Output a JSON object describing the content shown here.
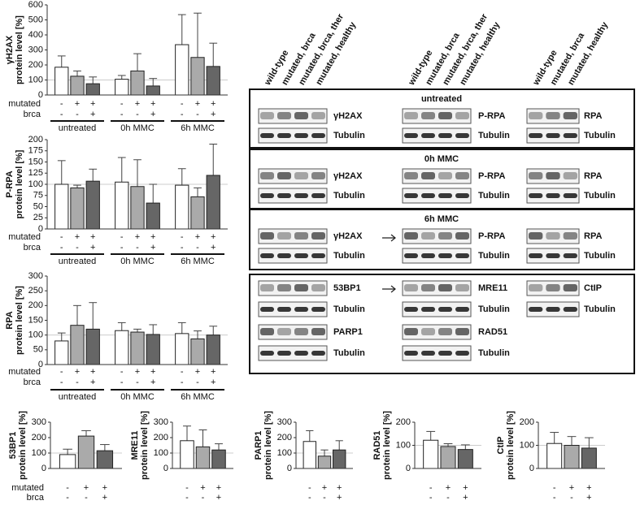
{
  "chart_data": [
    {
      "type": "bar",
      "title": "γH2AX",
      "ylabel": "protein level [%]",
      "ylim": [
        0,
        600
      ],
      "yticks": [
        0,
        100,
        200,
        300,
        400,
        500,
        600
      ],
      "hline": 100,
      "categories": [
        "untreated",
        "0h MMC",
        "6h MMC"
      ],
      "series": [
        {
          "color": "#ffffff",
          "values": [
            185,
            105,
            335
          ],
          "errors": [
            75,
            25,
            200
          ]
        },
        {
          "color": "#aaaaaa",
          "values": [
            125,
            160,
            250
          ],
          "errors": [
            35,
            115,
            295
          ]
        },
        {
          "color": "#666666",
          "values": [
            75,
            60,
            190
          ],
          "errors": [
            45,
            50,
            155
          ]
        }
      ],
      "rows": [
        {
          "label": "mutated",
          "signs": [
            "-",
            "+",
            "+",
            "-",
            "+",
            "+",
            "-",
            "+",
            "+"
          ]
        },
        {
          "label": "brca",
          "signs": [
            "-",
            "-",
            "+",
            "-",
            "-",
            "+",
            "-",
            "-",
            "+"
          ]
        }
      ]
    },
    {
      "type": "bar",
      "title": "P-RPA",
      "ylabel": "protein level [%]",
      "ylim": [
        0,
        200
      ],
      "yticks": [
        0,
        25,
        50,
        75,
        100,
        125,
        150,
        175,
        200
      ],
      "hline": 100,
      "categories": [
        "untreated",
        "0h MMC",
        "6h MMC"
      ],
      "series": [
        {
          "color": "#ffffff",
          "values": [
            100,
            105,
            98
          ],
          "errors": [
            53,
            55,
            37
          ]
        },
        {
          "color": "#aaaaaa",
          "values": [
            92,
            95,
            72
          ],
          "errors": [
            6,
            60,
            20
          ]
        },
        {
          "color": "#666666",
          "values": [
            107,
            58,
            120
          ],
          "errors": [
            27,
            42,
            70
          ]
        }
      ],
      "rows": [
        {
          "label": "mutated",
          "signs": [
            "-",
            "+",
            "+",
            "-",
            "+",
            "+",
            "-",
            "+",
            "+"
          ]
        },
        {
          "label": "brca",
          "signs": [
            "-",
            "-",
            "+",
            "-",
            "-",
            "+",
            "-",
            "-",
            "+"
          ]
        }
      ]
    },
    {
      "type": "bar",
      "title": "RPA",
      "ylabel": "protein level [%]",
      "ylim": [
        0,
        300
      ],
      "yticks": [
        0,
        50,
        100,
        150,
        200,
        250,
        300
      ],
      "hline": 100,
      "categories": [
        "untreated",
        "0h MMC",
        "6h MMC"
      ],
      "series": [
        {
          "color": "#ffffff",
          "values": [
            80,
            115,
            105
          ],
          "errors": [
            27,
            27,
            37
          ]
        },
        {
          "color": "#aaaaaa",
          "values": [
            133,
            110,
            87
          ],
          "errors": [
            67,
            10,
            27
          ]
        },
        {
          "color": "#666666",
          "values": [
            120,
            102,
            100
          ],
          "errors": [
            90,
            33,
            30
          ]
        }
      ],
      "rows": [
        {
          "label": "mutated",
          "signs": [
            "-",
            "+",
            "+",
            "-",
            "+",
            "+",
            "-",
            "+",
            "+"
          ]
        },
        {
          "label": "brca",
          "signs": [
            "-",
            "-",
            "+",
            "-",
            "-",
            "+",
            "-",
            "-",
            "+"
          ]
        }
      ]
    },
    {
      "type": "bar",
      "title": "53BP1",
      "ylabel": "protein level [%]",
      "ylim": [
        0,
        300
      ],
      "yticks": [
        0,
        100,
        200,
        300
      ],
      "hline": 100,
      "categories": [
        null
      ],
      "series": [
        {
          "color": "#ffffff",
          "values": [
            90
          ],
          "errors": [
            35
          ]
        },
        {
          "color": "#aaaaaa",
          "values": [
            210
          ],
          "errors": [
            35
          ]
        },
        {
          "color": "#666666",
          "values": [
            115
          ],
          "errors": [
            40
          ]
        }
      ],
      "rows": [
        {
          "label": "mutated",
          "signs": [
            "-",
            "+",
            "+"
          ]
        },
        {
          "label": "brca",
          "signs": [
            "-",
            "-",
            "+"
          ]
        }
      ]
    },
    {
      "type": "bar",
      "title": "MRE11",
      "ylabel": "protein level [%]",
      "ylim": [
        0,
        300
      ],
      "yticks": [
        0,
        100,
        200,
        300
      ],
      "hline": 100,
      "categories": [
        null
      ],
      "series": [
        {
          "color": "#ffffff",
          "values": [
            180
          ],
          "errors": [
            95
          ]
        },
        {
          "color": "#aaaaaa",
          "values": [
            140
          ],
          "errors": [
            110
          ]
        },
        {
          "color": "#666666",
          "values": [
            120
          ],
          "errors": [
            40
          ]
        }
      ],
      "rows": [
        {
          "signs": [
            "-",
            "+",
            "+"
          ]
        },
        {
          "signs": [
            "-",
            "-",
            "+"
          ]
        }
      ]
    },
    {
      "type": "bar",
      "title": "PARP1",
      "ylabel": "protein level [%]",
      "ylim": [
        0,
        300
      ],
      "yticks": [
        0,
        100,
        200,
        300
      ],
      "hline": 100,
      "categories": [
        null
      ],
      "series": [
        {
          "color": "#ffffff",
          "values": [
            175
          ],
          "errors": [
            70
          ]
        },
        {
          "color": "#aaaaaa",
          "values": [
            80
          ],
          "errors": [
            40
          ]
        },
        {
          "color": "#666666",
          "values": [
            120
          ],
          "errors": [
            60
          ]
        }
      ],
      "rows": [
        {
          "signs": [
            "-",
            "+",
            "+"
          ]
        },
        {
          "signs": [
            "-",
            "-",
            "+"
          ]
        }
      ]
    },
    {
      "type": "bar",
      "title": "RAD51",
      "ylabel": "protein level [%]",
      "ylim": [
        0,
        200
      ],
      "yticks": [
        0,
        100,
        200
      ],
      "hline": 100,
      "categories": [
        null
      ],
      "series": [
        {
          "color": "#ffffff",
          "values": [
            122
          ],
          "errors": [
            38
          ]
        },
        {
          "color": "#aaaaaa",
          "values": [
            95
          ],
          "errors": [
            12
          ]
        },
        {
          "color": "#666666",
          "values": [
            82
          ],
          "errors": [
            20
          ]
        }
      ],
      "rows": [
        {
          "signs": [
            "-",
            "+",
            "+"
          ]
        },
        {
          "signs": [
            "-",
            "-",
            "+"
          ]
        }
      ]
    },
    {
      "type": "bar",
      "title": "CtIP",
      "ylabel": "protein level [%]",
      "ylim": [
        0,
        200
      ],
      "yticks": [
        0,
        100,
        200
      ],
      "hline": 100,
      "categories": [
        null
      ],
      "series": [
        {
          "color": "#ffffff",
          "values": [
            108
          ],
          "errors": [
            48
          ]
        },
        {
          "color": "#aaaaaa",
          "values": [
            100
          ],
          "errors": [
            38
          ]
        },
        {
          "color": "#666666",
          "values": [
            88
          ],
          "errors": [
            45
          ]
        }
      ],
      "rows": [
        {
          "signs": [
            "-",
            "+",
            "+"
          ]
        },
        {
          "signs": [
            "-",
            "-",
            "+"
          ]
        }
      ]
    }
  ],
  "blots": {
    "headers": [
      [
        "wild-type",
        "mutated, brca",
        "mutated, brca, ther",
        "mutated, healthy"
      ],
      [
        "wild-type",
        "mutated, brca",
        "mutated, brca, ther",
        "mutated, healthy"
      ],
      [
        "wild-type",
        "mutated, brca",
        "mutated, healthy"
      ]
    ],
    "sections": [
      {
        "title": "untreated",
        "panels": [
          [
            "γH2AX",
            "Tubulin"
          ],
          [
            "P-RPA",
            "Tubulin"
          ],
          [
            "RPA",
            "Tubulin"
          ]
        ]
      },
      {
        "title": "0h MMC",
        "panels": [
          [
            "γH2AX",
            "Tubulin"
          ],
          [
            "P-RPA",
            "Tubulin"
          ],
          [
            "RPA",
            "Tubulin"
          ]
        ]
      },
      {
        "title": "6h MMC",
        "panels": [
          [
            "γH2AX",
            "Tubulin"
          ],
          [
            "P-RPA",
            "Tubulin"
          ],
          [
            "RPA",
            "Tubulin"
          ]
        ]
      },
      {
        "panels": [
          [
            "53BP1",
            "Tubulin",
            "PARP1",
            "Tubulin"
          ],
          [
            "MRE11",
            "Tubulin",
            "RAD51",
            "Tubulin"
          ],
          [
            "CtIP",
            "Tubulin"
          ]
        ]
      }
    ]
  }
}
